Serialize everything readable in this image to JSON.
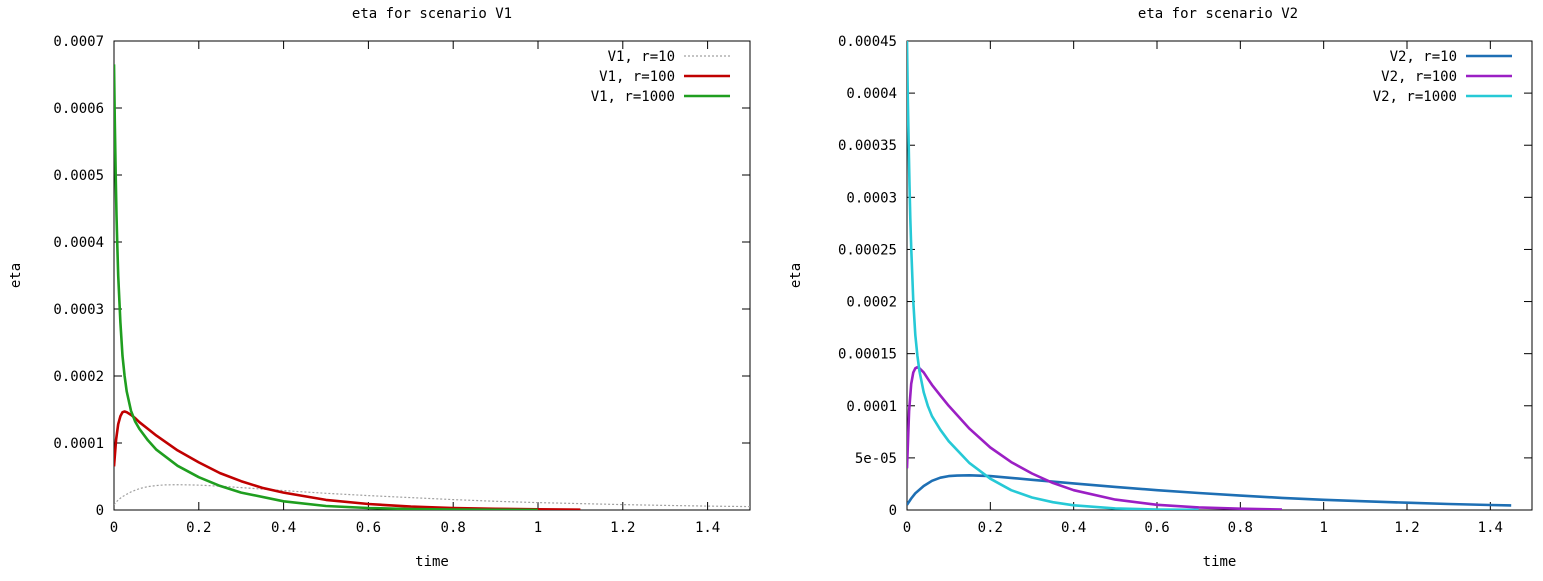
{
  "chart_data": [
    {
      "type": "line",
      "title": "eta for scenario V1",
      "xlabel": "time",
      "ylabel": "eta",
      "xlim": [
        0,
        1.5
      ],
      "ylim": [
        0,
        0.0007
      ],
      "xticks": [
        0,
        0.2,
        0.4,
        0.6,
        0.8,
        1,
        1.2,
        1.4
      ],
      "xtick_labels": [
        "0",
        "0.2",
        "0.4",
        "0.6",
        "0.8",
        "1",
        "1.2",
        "1.4"
      ],
      "yticks": [
        0,
        0.0001,
        0.0002,
        0.0003,
        0.0004,
        0.0005,
        0.0006,
        0.0007
      ],
      "ytick_labels": [
        "0",
        "0.0001",
        "0.0002",
        "0.0003",
        "0.0004",
        "0.0005",
        "0.0006",
        "0.0007"
      ],
      "grid": false,
      "legend": "top-right",
      "series": [
        {
          "name": "V1, r=10",
          "color": "#a0a0a0",
          "dashed": true,
          "x": [
            0,
            0.01,
            0.02,
            0.04,
            0.06,
            0.08,
            0.1,
            0.12,
            0.15,
            0.2,
            0.25,
            0.3,
            0.4,
            0.5,
            0.6,
            0.7,
            0.8,
            0.9,
            1.0,
            1.1,
            1.2,
            1.3,
            1.4,
            1.5
          ],
          "y": [
            8e-06,
            1.5e-05,
            2e-05,
            2.7e-05,
            3.2e-05,
            3.5e-05,
            3.65e-05,
            3.75e-05,
            3.78e-05,
            3.72e-05,
            3.55e-05,
            3.35e-05,
            2.9e-05,
            2.5e-05,
            2.15e-05,
            1.85e-05,
            1.55e-05,
            1.3e-05,
            1.1e-05,
            9.5e-06,
            8e-06,
            6.8e-06,
            5.8e-06,
            5e-06
          ]
        },
        {
          "name": "V1, r=100",
          "color": "#c00000",
          "dashed": false,
          "x": [
            0,
            0.005,
            0.01,
            0.015,
            0.02,
            0.025,
            0.03,
            0.04,
            0.05,
            0.06,
            0.08,
            0.1,
            0.15,
            0.2,
            0.25,
            0.3,
            0.35,
            0.4,
            0.5,
            0.6,
            0.7,
            0.8,
            0.9,
            1.0,
            1.1
          ],
          "y": [
            6.5e-05,
            0.000105,
            0.000128,
            0.00014,
            0.000146,
            0.000147,
            0.000146,
            0.000142,
            0.000137,
            0.000131,
            0.000121,
            0.000111,
            8.9e-05,
            7.1e-05,
            5.5e-05,
            4.3e-05,
            3.3e-05,
            2.6e-05,
            1.5e-05,
            9e-06,
            5e-06,
            3e-06,
            1.8e-06,
            1e-06,
            5e-07
          ]
        },
        {
          "name": "V1, r=1000",
          "color": "#1f9e1f",
          "dashed": false,
          "x": [
            0,
            0.002,
            0.004,
            0.006,
            0.008,
            0.01,
            0.015,
            0.02,
            0.025,
            0.03,
            0.04,
            0.05,
            0.06,
            0.08,
            0.1,
            0.15,
            0.2,
            0.25,
            0.3,
            0.4,
            0.5,
            0.6,
            0.7,
            0.8,
            0.9,
            1.0
          ],
          "y": [
            0.000665,
            0.00058,
            0.0005,
            0.00044,
            0.00039,
            0.00035,
            0.00028,
            0.00023,
            0.0002,
            0.000177,
            0.000148,
            0.000132,
            0.000121,
            0.000104,
            9e-05,
            6.6e-05,
            4.9e-05,
            3.6e-05,
            2.6e-05,
            1.3e-05,
            6e-06,
            3e-06,
            1.5e-06,
            7e-07,
            3e-07,
            1e-07
          ]
        }
      ]
    },
    {
      "type": "line",
      "title": "eta for scenario V2",
      "xlabel": "time",
      "ylabel": "eta",
      "xlim": [
        0,
        1.5
      ],
      "ylim": [
        0,
        0.00045
      ],
      "xticks": [
        0,
        0.2,
        0.4,
        0.6,
        0.8,
        1,
        1.2,
        1.4
      ],
      "xtick_labels": [
        "0",
        "0.2",
        "0.4",
        "0.6",
        "0.8",
        "1",
        "1.2",
        "1.4"
      ],
      "yticks": [
        0,
        5e-05,
        0.0001,
        0.00015,
        0.0002,
        0.00025,
        0.0003,
        0.00035,
        0.0004,
        0.00045
      ],
      "ytick_labels": [
        "0",
        "5e-05",
        "0.0001",
        "0.00015",
        "0.0002",
        "0.00025",
        "0.0003",
        "0.00035",
        "0.0004",
        "0.00045"
      ],
      "grid": false,
      "legend": "top-right",
      "series": [
        {
          "name": "V2, r=10",
          "color": "#1e6fb4",
          "dashed": false,
          "x": [
            0,
            0.01,
            0.02,
            0.04,
            0.06,
            0.08,
            0.1,
            0.12,
            0.15,
            0.2,
            0.25,
            0.3,
            0.4,
            0.5,
            0.6,
            0.7,
            0.8,
            0.9,
            1.0,
            1.1,
            1.2,
            1.3,
            1.4,
            1.45
          ],
          "y": [
            5e-06,
            1.1e-05,
            1.6e-05,
            2.3e-05,
            2.8e-05,
            3.1e-05,
            3.25e-05,
            3.3e-05,
            3.33e-05,
            3.25e-05,
            3.08e-05,
            2.9e-05,
            2.55e-05,
            2.22e-05,
            1.9e-05,
            1.63e-05,
            1.38e-05,
            1.16e-05,
            9.8e-06,
            8.3e-06,
            7e-06,
            5.8e-06,
            4.8e-06,
            4.4e-06
          ]
        },
        {
          "name": "V2, r=100",
          "color": "#9b1fc4",
          "dashed": false,
          "x": [
            0,
            0.005,
            0.01,
            0.015,
            0.02,
            0.025,
            0.03,
            0.04,
            0.05,
            0.06,
            0.08,
            0.1,
            0.15,
            0.2,
            0.25,
            0.3,
            0.35,
            0.4,
            0.5,
            0.6,
            0.7,
            0.8,
            0.9
          ],
          "y": [
            4e-05,
            9.5e-05,
            0.000121,
            0.000132,
            0.000136,
            0.000137,
            0.000136,
            0.000132,
            0.000126,
            0.00012,
            0.00011,
            0.0001,
            7.8e-05,
            6e-05,
            4.6e-05,
            3.5e-05,
            2.6e-05,
            1.9e-05,
            1e-05,
            5e-06,
            2.5e-06,
            1.2e-06,
            5e-07
          ]
        },
        {
          "name": "V2, r=1000",
          "color": "#26c9d6",
          "dashed": false,
          "x": [
            0,
            0.002,
            0.004,
            0.006,
            0.008,
            0.01,
            0.015,
            0.02,
            0.025,
            0.03,
            0.04,
            0.05,
            0.06,
            0.08,
            0.1,
            0.15,
            0.2,
            0.25,
            0.3,
            0.35,
            0.4,
            0.5,
            0.6,
            0.7
          ],
          "y": [
            0.00045,
            0.000395,
            0.00035,
            0.000312,
            0.00028,
            0.000252,
            0.0002,
            0.000168,
            0.000148,
            0.000133,
            0.000113,
            0.0001,
            9e-05,
            7.7e-05,
            6.6e-05,
            4.5e-05,
            3e-05,
            1.9e-05,
            1.2e-05,
            7.5e-06,
            4.5e-06,
            1.5e-06,
            5e-07,
            2e-07
          ]
        }
      ]
    }
  ]
}
